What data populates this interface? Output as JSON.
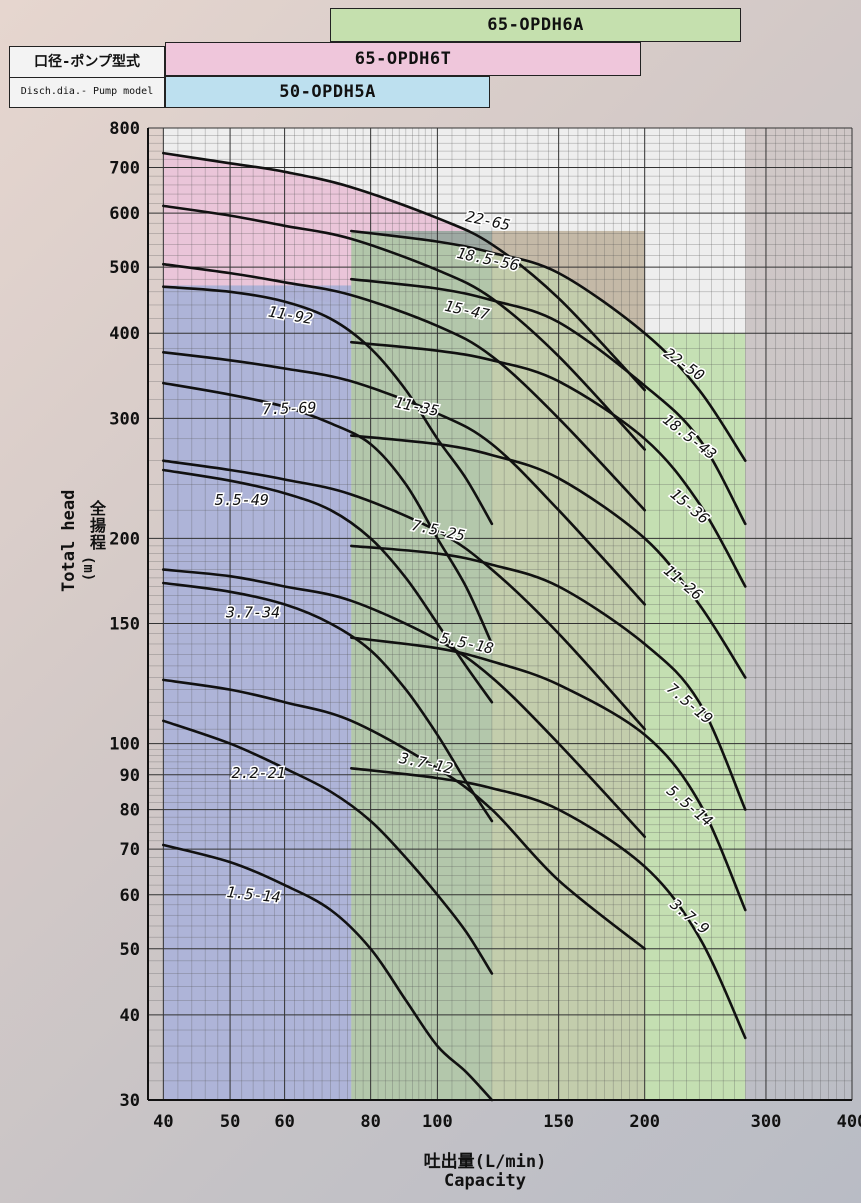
{
  "header": {
    "label_jp": "口径-ポンプ型式",
    "label_en": "Disch.dia.- Pump model",
    "bands": [
      {
        "name": "65-OPDH6A",
        "color": "#c5e0ae",
        "from": 75,
        "to": 280
      },
      {
        "name": "65-OPDH6T",
        "color": "#efc6db",
        "from": 40,
        "to": 200
      },
      {
        "name": "50-OPDH5A",
        "color": "#bde0ef",
        "from": 40,
        "to": 120
      }
    ]
  },
  "axis": {
    "ylabel_en": "Total head",
    "ylabel_jp": "全揚程",
    "yunit": "(m)",
    "xlabel_jp": "吐出量(L/min)",
    "xlabel_en": "Capacity"
  },
  "chart_data": {
    "type": "line",
    "x_scale": "log",
    "y_scale": "log",
    "xlim": [
      38,
      400
    ],
    "ylim": [
      30,
      800
    ],
    "x_ticks": [
      40,
      50,
      60,
      80,
      100,
      150,
      200,
      300,
      400
    ],
    "y_ticks": [
      30,
      40,
      50,
      60,
      70,
      80,
      90,
      100,
      150,
      200,
      300,
      400,
      500,
      600,
      700,
      800
    ],
    "grid": true,
    "regions": [
      {
        "name": "50-OPDH5A",
        "x": [
          40,
          75
        ],
        "color": "#aab0d6"
      },
      {
        "name": "65-OPDH6T",
        "x": [
          75,
          120
        ],
        "color": "#9aa8a0"
      },
      {
        "name": "65-OPDH6T",
        "x": [
          120,
          200
        ],
        "color": "#c1b5a2"
      },
      {
        "name": "65-OPDH6A",
        "x": [
          200,
          280
        ],
        "color": "#c2deb0"
      }
    ],
    "top_fill": {
      "color": "#eac5d9"
    },
    "series": [
      {
        "name": "22-65",
        "x": [
          40,
          50,
          60,
          75,
          100,
          120,
          150,
          200
        ],
        "y": [
          735,
          710,
          690,
          655,
          590,
          540,
          450,
          330
        ]
      },
      {
        "name": "18.5-56",
        "x": [
          40,
          50,
          60,
          75,
          100,
          120,
          150,
          200
        ],
        "y": [
          615,
          595,
          575,
          550,
          495,
          450,
          370,
          270
        ]
      },
      {
        "name": "15-47",
        "x": [
          40,
          50,
          60,
          75,
          100,
          120,
          150,
          200
        ],
        "y": [
          505,
          490,
          475,
          455,
          410,
          370,
          300,
          220
        ]
      },
      {
        "name": "11-92",
        "x": [
          40,
          50,
          60,
          70,
          80,
          90,
          100,
          110,
          120
        ],
        "y": [
          468,
          460,
          445,
          420,
          380,
          330,
          280,
          245,
          210
        ]
      },
      {
        "name": "11-35",
        "x": [
          40,
          50,
          60,
          75,
          100,
          120,
          150,
          200
        ],
        "y": [
          375,
          365,
          355,
          340,
          305,
          275,
          220,
          160
        ]
      },
      {
        "name": "7.5-69",
        "x": [
          40,
          50,
          60,
          70,
          80,
          90,
          100,
          110,
          120
        ],
        "y": [
          338,
          325,
          312,
          295,
          275,
          240,
          200,
          170,
          140
        ]
      },
      {
        "name": "5.5-49",
        "x": [
          40,
          50,
          60,
          70,
          80,
          90,
          100,
          110,
          120
        ],
        "y": [
          252,
          243,
          233,
          220,
          200,
          175,
          150,
          130,
          115
        ]
      },
      {
        "name": "7.5-25",
        "x": [
          40,
          50,
          60,
          75,
          100,
          120,
          150,
          200
        ],
        "y": [
          260,
          252,
          244,
          232,
          205,
          180,
          145,
          105
        ]
      },
      {
        "name": "3.7-34",
        "x": [
          40,
          50,
          60,
          70,
          80,
          90,
          100,
          110,
          120
        ],
        "y": [
          172,
          167,
          160,
          150,
          137,
          120,
          103,
          88,
          77
        ]
      },
      {
        "name": "5.5-18",
        "x": [
          40,
          50,
          60,
          75,
          100,
          120,
          150,
          200
        ],
        "y": [
          180,
          176,
          170,
          162,
          142,
          125,
          100,
          73
        ]
      },
      {
        "name": "2.2-21",
        "x": [
          40,
          50,
          60,
          70,
          80,
          90,
          100,
          110,
          120
        ],
        "y": [
          108,
          100,
          92,
          85,
          77,
          68,
          60,
          53,
          46
        ]
      },
      {
        "name": "3.7-12",
        "x": [
          40,
          50,
          60,
          75,
          100,
          120,
          150,
          200
        ],
        "y": [
          124,
          120,
          115,
          108,
          92,
          80,
          63,
          50
        ]
      },
      {
        "name": "1.5-14",
        "x": [
          40,
          50,
          60,
          70,
          80,
          90,
          100,
          110,
          120
        ],
        "y": [
          71,
          67,
          62,
          57,
          50,
          42,
          36,
          33,
          30
        ]
      },
      {
        "name": "22-50",
        "x": [
          75,
          100,
          120,
          150,
          200,
          240,
          280
        ],
        "y": [
          565,
          545,
          525,
          490,
          400,
          330,
          260
        ]
      },
      {
        "name": "18.5-43",
        "x": [
          75,
          100,
          120,
          150,
          200,
          240,
          280
        ],
        "y": [
          480,
          465,
          447,
          415,
          335,
          280,
          210
        ]
      },
      {
        "name": "15-36",
        "x": [
          75,
          100,
          120,
          150,
          200,
          240,
          280
        ],
        "y": [
          388,
          377,
          365,
          340,
          280,
          225,
          170
        ]
      },
      {
        "name": "11-26",
        "x": [
          75,
          100,
          120,
          150,
          200,
          240,
          280
        ],
        "y": [
          283,
          275,
          265,
          245,
          200,
          160,
          125
        ]
      },
      {
        "name": "7.5-19",
        "x": [
          75,
          100,
          120,
          150,
          200,
          240,
          280
        ],
        "y": [
          195,
          190,
          183,
          170,
          140,
          115,
          80
        ]
      },
      {
        "name": "5.5-14",
        "x": [
          75,
          100,
          120,
          150,
          200,
          240,
          280
        ],
        "y": [
          143,
          138,
          132,
          122,
          103,
          82,
          57
        ]
      },
      {
        "name": "3.7-9",
        "x": [
          75,
          100,
          120,
          150,
          200,
          240,
          280
        ],
        "y": [
          92,
          89,
          86,
          80,
          66,
          52,
          37
        ]
      }
    ],
    "labels": [
      {
        "text": "22-65",
        "x": 118,
        "y": 575,
        "rot": 12
      },
      {
        "text": "18.5-56",
        "x": 118,
        "y": 505,
        "rot": 12
      },
      {
        "text": "15-47",
        "x": 110,
        "y": 425,
        "rot": 12
      },
      {
        "text": "11-92",
        "x": 61,
        "y": 418,
        "rot": 10
      },
      {
        "text": "11-35",
        "x": 93,
        "y": 307,
        "rot": 12
      },
      {
        "text": "7.5-69",
        "x": 61,
        "y": 305,
        "rot": -2
      },
      {
        "text": "5.5-49",
        "x": 52,
        "y": 224,
        "rot": 0
      },
      {
        "text": "7.5-25",
        "x": 100,
        "y": 202,
        "rot": 12
      },
      {
        "text": "3.7-34",
        "x": 54,
        "y": 153,
        "rot": 0
      },
      {
        "text": "5.5-18",
        "x": 110,
        "y": 138,
        "rot": 12
      },
      {
        "text": "2.2-21",
        "x": 55,
        "y": 89,
        "rot": 0
      },
      {
        "text": "3.7-12",
        "x": 96,
        "y": 92,
        "rot": 12
      },
      {
        "text": "1.5-14",
        "x": 54,
        "y": 59,
        "rot": 6
      },
      {
        "text": "22-50",
        "x": 226,
        "y": 355,
        "rot": 35
      },
      {
        "text": "18.5-43",
        "x": 230,
        "y": 278,
        "rot": 38
      },
      {
        "text": "15-36",
        "x": 230,
        "y": 220,
        "rot": 40
      },
      {
        "text": "11-26",
        "x": 225,
        "y": 170,
        "rot": 40
      },
      {
        "text": "7.5-19",
        "x": 230,
        "y": 113,
        "rot": 40
      },
      {
        "text": "5.5-14",
        "x": 230,
        "y": 80,
        "rot": 40
      },
      {
        "text": "3.7-9",
        "x": 230,
        "y": 55,
        "rot": 40
      }
    ]
  }
}
